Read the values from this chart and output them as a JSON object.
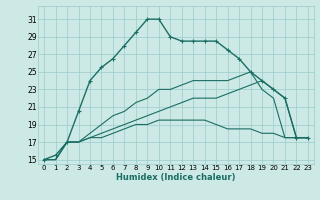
{
  "xlabel": "Humidex (Indice chaleur)",
  "bg_color": "#cce9e5",
  "grid_color": "#99cccc",
  "line_color": "#1a6e64",
  "xlim": [
    -0.5,
    23.5
  ],
  "ylim": [
    14.5,
    32.5
  ],
  "yticks": [
    15,
    17,
    19,
    21,
    23,
    25,
    27,
    29,
    31
  ],
  "xticks": [
    0,
    1,
    2,
    3,
    4,
    5,
    6,
    7,
    8,
    9,
    10,
    11,
    12,
    13,
    14,
    15,
    16,
    17,
    18,
    19,
    20,
    21,
    22,
    23
  ],
  "series": [
    {
      "x": [
        0,
        1,
        2,
        3,
        4,
        5,
        6,
        7,
        8,
        9,
        10,
        11,
        12,
        13,
        14,
        15,
        16,
        17,
        18,
        19,
        20,
        21,
        22,
        23
      ],
      "y": [
        15,
        15.5,
        17,
        20.5,
        24,
        25.5,
        26.5,
        28,
        29.5,
        31,
        31,
        29,
        28.5,
        28.5,
        28.5,
        28.5,
        27.5,
        26.5,
        25,
        24,
        23,
        22,
        17.5,
        17.5
      ],
      "marker": "+",
      "linewidth": 1.0,
      "markersize": 3.5
    },
    {
      "x": [
        0,
        1,
        2,
        3,
        4,
        5,
        6,
        7,
        8,
        9,
        10,
        11,
        12,
        13,
        14,
        15,
        16,
        17,
        18,
        19,
        20,
        21,
        22,
        23
      ],
      "y": [
        15,
        15,
        17,
        17,
        17.5,
        17.5,
        18,
        18.5,
        19,
        19,
        19.5,
        19.5,
        19.5,
        19.5,
        19.5,
        19,
        18.5,
        18.5,
        18.5,
        18,
        18,
        17.5,
        17.5,
        17.5
      ],
      "marker": null,
      "linewidth": 0.8,
      "markersize": 0
    },
    {
      "x": [
        0,
        1,
        2,
        3,
        4,
        5,
        6,
        7,
        8,
        9,
        10,
        11,
        12,
        13,
        14,
        15,
        16,
        17,
        18,
        19,
        20,
        21,
        22,
        23
      ],
      "y": [
        15,
        15,
        17,
        17,
        17.5,
        18,
        18.5,
        19,
        19.5,
        20,
        20.5,
        21,
        21.5,
        22,
        22,
        22,
        22.5,
        23,
        23.5,
        24,
        23,
        22,
        17.5,
        17.5
      ],
      "marker": null,
      "linewidth": 0.8,
      "markersize": 0
    },
    {
      "x": [
        0,
        1,
        2,
        3,
        4,
        5,
        6,
        7,
        8,
        9,
        10,
        11,
        12,
        13,
        14,
        15,
        16,
        17,
        18,
        19,
        20,
        21,
        22,
        23
      ],
      "y": [
        15,
        15,
        17,
        17,
        18,
        19,
        20,
        20.5,
        21.5,
        22,
        23,
        23,
        23.5,
        24,
        24,
        24,
        24,
        24.5,
        25,
        23,
        22,
        17.5,
        17.5,
        17.5
      ],
      "marker": null,
      "linewidth": 0.8,
      "markersize": 0
    }
  ]
}
